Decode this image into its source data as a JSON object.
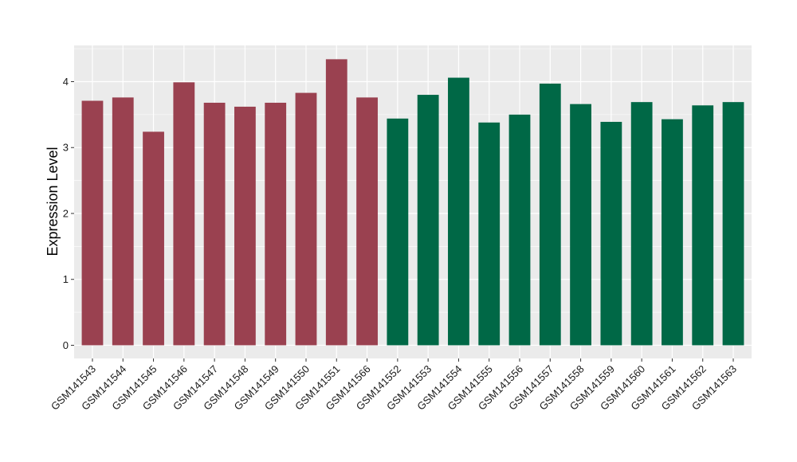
{
  "chart_data": {
    "type": "bar",
    "title": "",
    "xlabel": "",
    "ylabel": "Expression Level",
    "ylim": [
      -0.2,
      4.55
    ],
    "yticks": [
      0,
      1,
      2,
      3,
      4
    ],
    "grid": true,
    "legend": "none",
    "colors": {
      "group1": "#9a4150",
      "group2": "#006846",
      "panel": "#ebebeb",
      "grid": "#ffffff"
    },
    "categories": [
      "GSM141543",
      "GSM141544",
      "GSM141545",
      "GSM141546",
      "GSM141547",
      "GSM141548",
      "GSM141549",
      "GSM141550",
      "GSM141551",
      "GSM141566",
      "GSM141552",
      "GSM141553",
      "GSM141554",
      "GSM141555",
      "GSM141556",
      "GSM141557",
      "GSM141558",
      "GSM141559",
      "GSM141560",
      "GSM141561",
      "GSM141562",
      "GSM141563"
    ],
    "values": [
      3.71,
      3.76,
      3.24,
      3.99,
      3.68,
      3.62,
      3.68,
      3.83,
      4.34,
      3.76,
      3.44,
      3.8,
      4.06,
      3.38,
      3.5,
      3.97,
      3.66,
      3.39,
      3.69,
      3.43,
      3.64,
      3.69
    ],
    "groups": [
      1,
      1,
      1,
      1,
      1,
      1,
      1,
      1,
      1,
      1,
      2,
      2,
      2,
      2,
      2,
      2,
      2,
      2,
      2,
      2,
      2,
      2
    ]
  }
}
